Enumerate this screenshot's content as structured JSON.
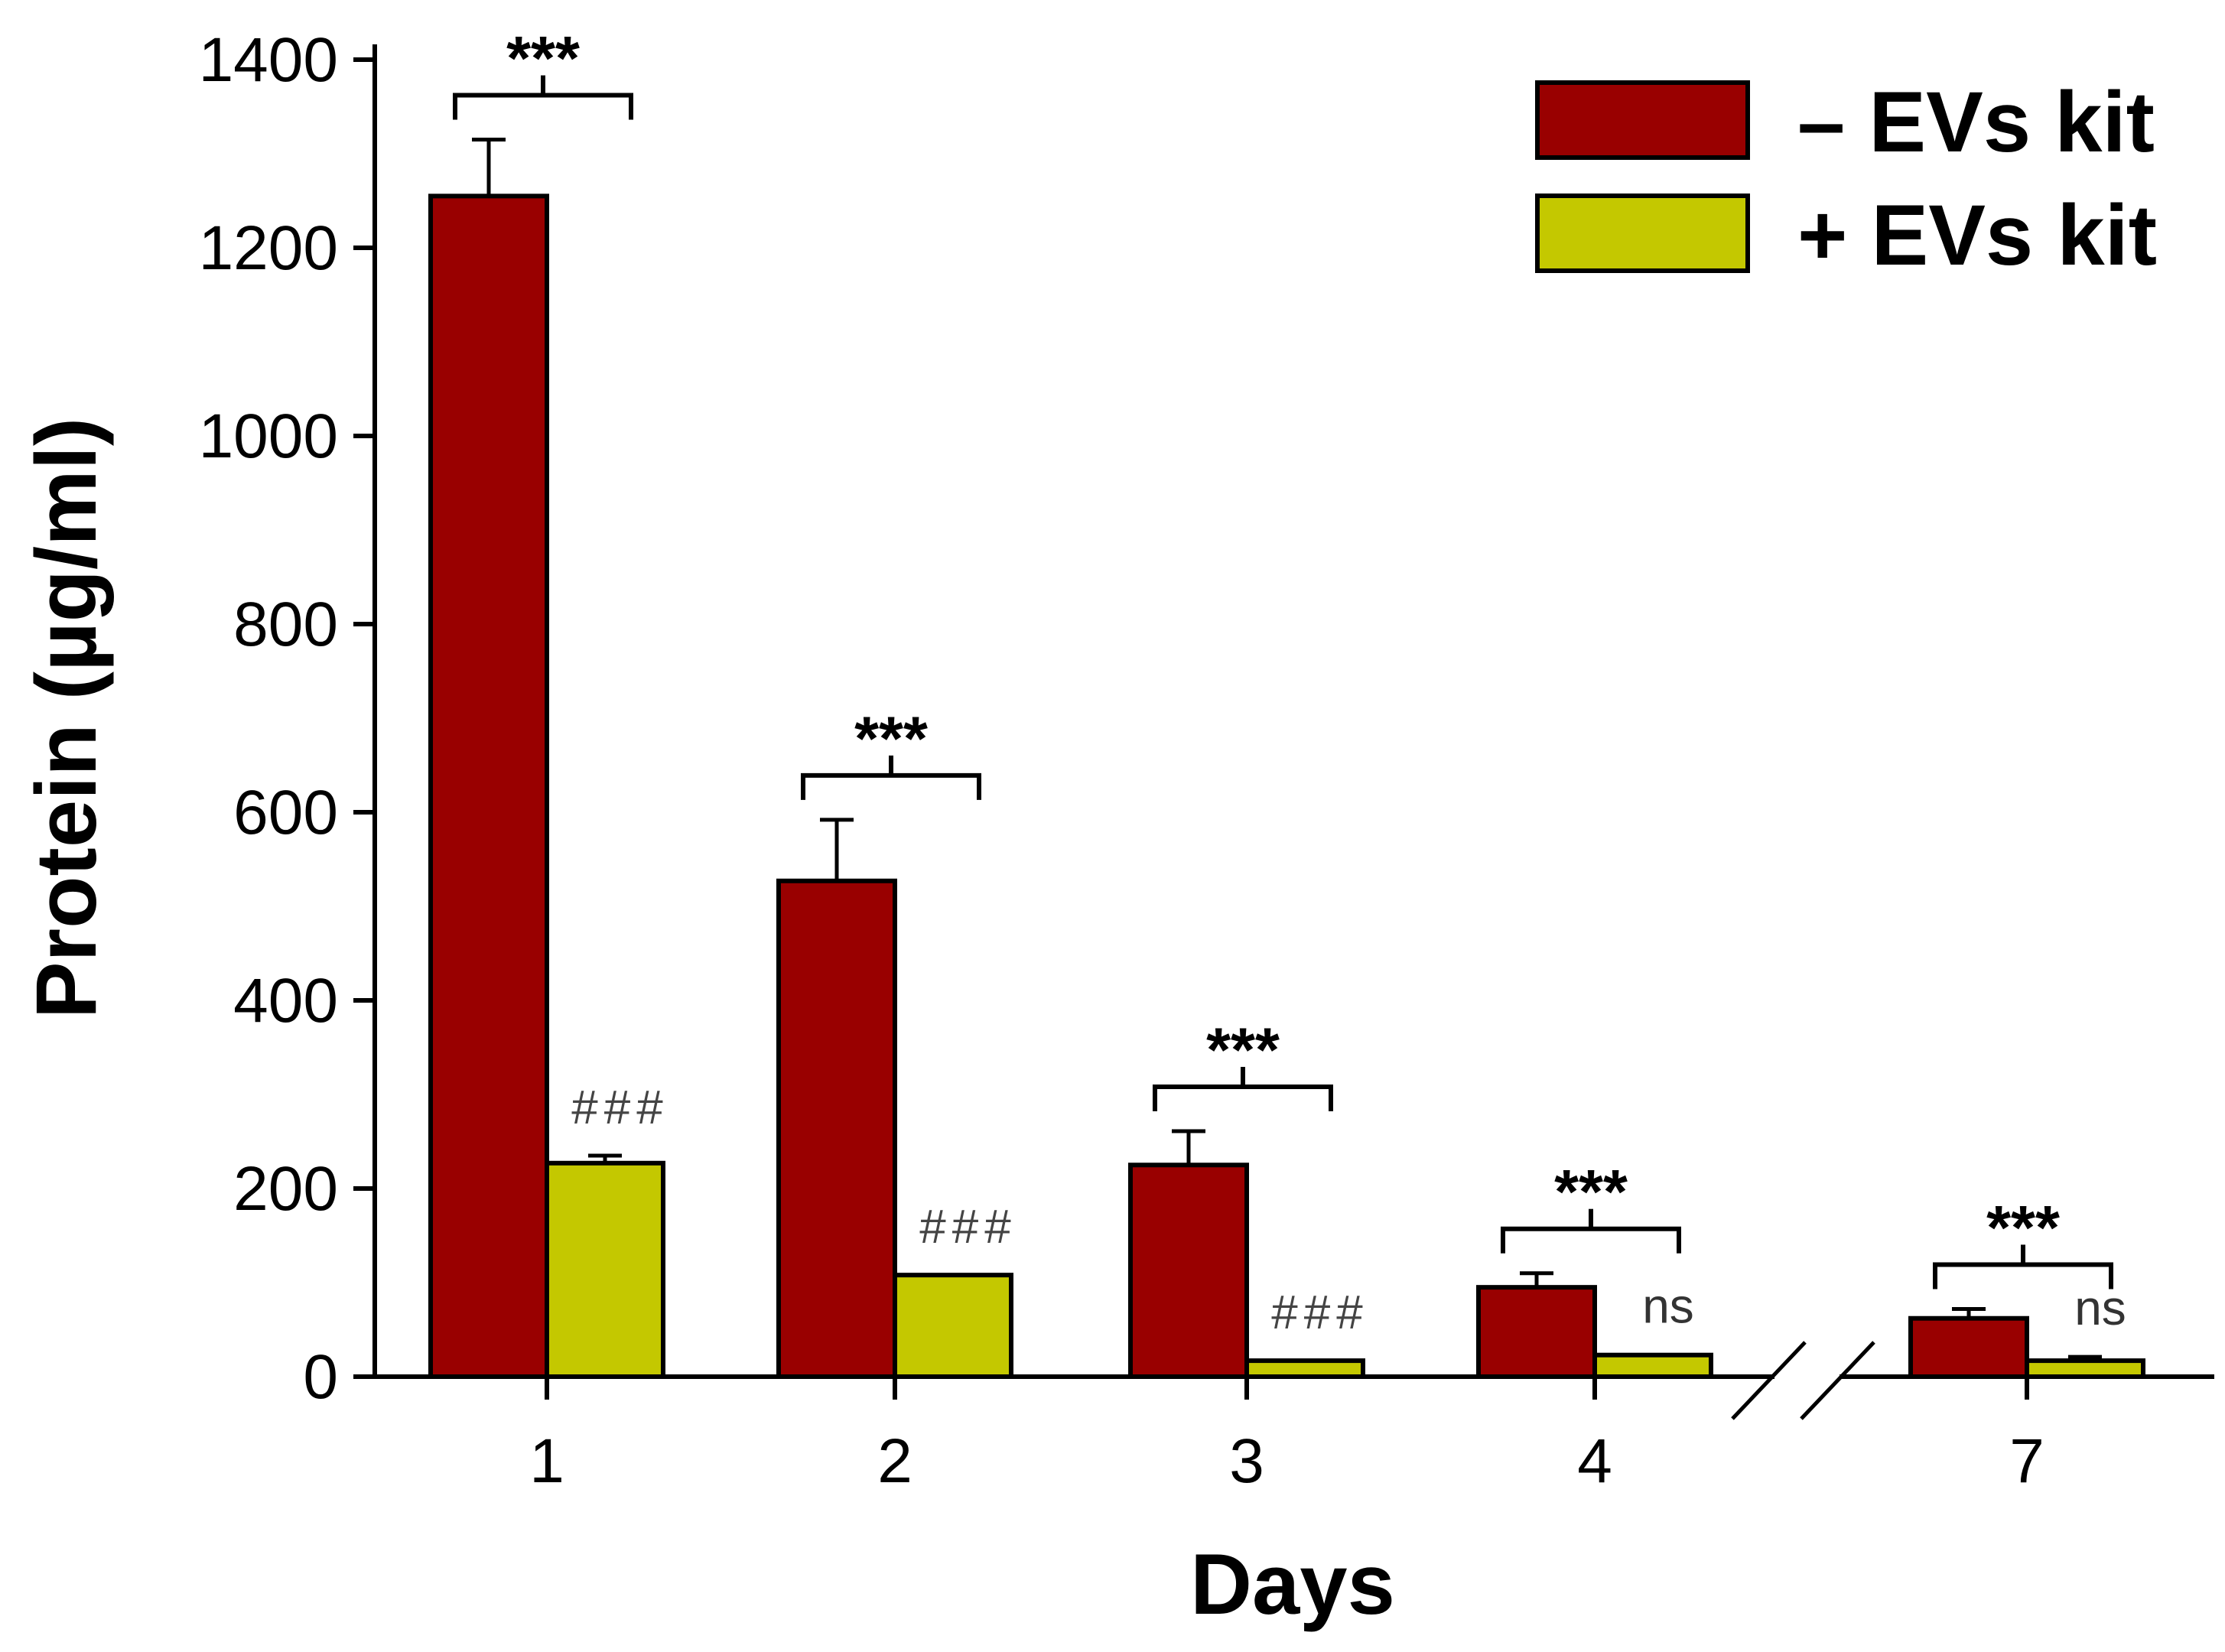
{
  "chart_data": {
    "type": "bar",
    "categories": [
      "1",
      "2",
      "3",
      "4",
      "7"
    ],
    "series": [
      {
        "name": "– EVs kit",
        "color": "#990000",
        "values": [
          1255,
          527,
          225,
          95,
          62
        ],
        "errors": [
          60,
          65,
          36,
          15,
          10
        ]
      },
      {
        "name": "+ EVs kit",
        "color": "#c4c800",
        "values": [
          227,
          108,
          17,
          23,
          17
        ],
        "errors": [
          8,
          0,
          0,
          0,
          4
        ]
      }
    ],
    "annotations": {
      "bracket": [
        "***",
        "***",
        "***",
        "***",
        "***"
      ],
      "second_bar": [
        "###",
        "###",
        "###",
        "ns",
        "ns"
      ]
    },
    "legend": [
      "– EVs kit",
      "+ EVs kit"
    ],
    "legend_position": "top-right",
    "xlabel": "Days",
    "ylabel": "Protein (µg/ml)",
    "yticks": [
      0,
      200,
      400,
      600,
      800,
      1000,
      1200,
      1400
    ],
    "ylim": [
      0,
      1400
    ],
    "axis_break_between": [
      "4",
      "7"
    ],
    "grid": false
  }
}
